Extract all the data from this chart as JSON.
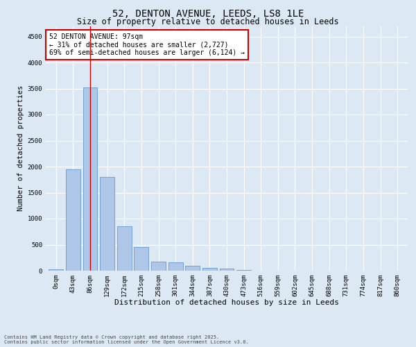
{
  "title1": "52, DENTON AVENUE, LEEDS, LS8 1LE",
  "title2": "Size of property relative to detached houses in Leeds",
  "xlabel": "Distribution of detached houses by size in Leeds",
  "ylabel": "Number of detached properties",
  "bar_labels": [
    "0sqm",
    "43sqm",
    "86sqm",
    "129sqm",
    "172sqm",
    "215sqm",
    "258sqm",
    "301sqm",
    "344sqm",
    "387sqm",
    "430sqm",
    "473sqm",
    "516sqm",
    "559sqm",
    "602sqm",
    "645sqm",
    "688sqm",
    "731sqm",
    "774sqm",
    "817sqm",
    "860sqm"
  ],
  "bar_values": [
    25,
    1950,
    3520,
    1800,
    860,
    450,
    175,
    165,
    90,
    55,
    40,
    10,
    5,
    2,
    1,
    0,
    0,
    0,
    0,
    0,
    0
  ],
  "bar_color": "#aec6e8",
  "bar_edge_color": "#6699cc",
  "vline_x": 2,
  "vline_color": "#cc0000",
  "ylim": [
    0,
    4700
  ],
  "yticks": [
    0,
    500,
    1000,
    1500,
    2000,
    2500,
    3000,
    3500,
    4000,
    4500
  ],
  "annotation_text": "52 DENTON AVENUE: 97sqm\n← 31% of detached houses are smaller (2,727)\n69% of semi-detached houses are larger (6,124) →",
  "annotation_box_color": "#ffffff",
  "annotation_border_color": "#cc0000",
  "footer1": "Contains HM Land Registry data © Crown copyright and database right 2025.",
  "footer2": "Contains public sector information licensed under the Open Government Licence v3.0.",
  "bg_color": "#dce9f5",
  "plot_bg_color": "#dce9f5",
  "title1_fontsize": 10,
  "title2_fontsize": 8.5,
  "tick_fontsize": 6.5,
  "ylabel_fontsize": 7.5,
  "xlabel_fontsize": 8,
  "annotation_fontsize": 7,
  "footer_fontsize": 5
}
